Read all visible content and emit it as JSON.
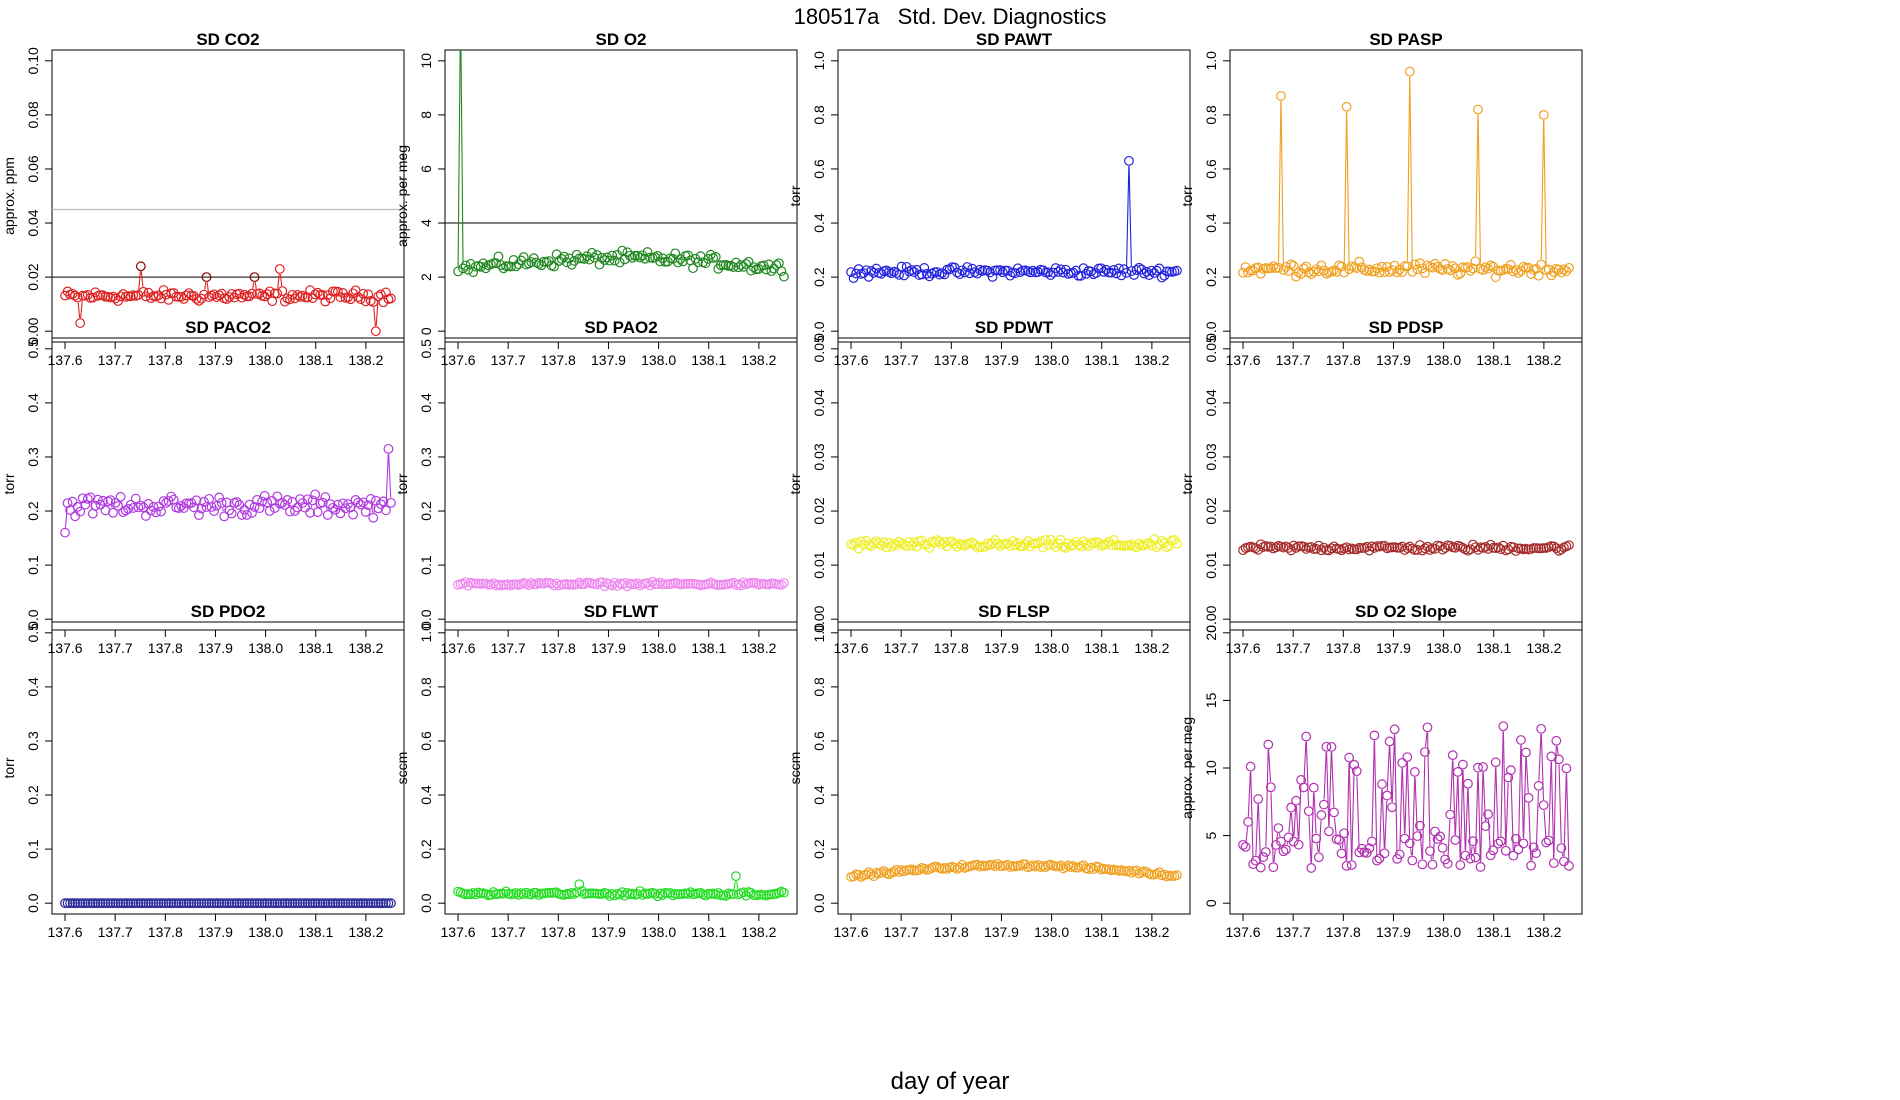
{
  "figure": {
    "title": "180517a   Std. Dev. Diagnostics",
    "xlabel": "day of year"
  },
  "chart_data": [
    {
      "type": "scatter",
      "title": "SD CO2",
      "ylabel": "approx. ppm",
      "xlim": [
        137.6,
        138.25
      ],
      "ylim": [
        0,
        0.1
      ],
      "xticks": [
        "137.6",
        "137.7",
        "137.8",
        "137.9",
        "138.0",
        "138.1",
        "138.2"
      ],
      "yticks": [
        "0.00",
        "0.02",
        "0.04",
        "0.06",
        "0.08",
        "0.10"
      ],
      "color": "#dd2222",
      "n_points": 130,
      "base": 0.013,
      "noise": 0.003,
      "hlines": [
        {
          "y": 0.02,
          "color": "#333333"
        },
        {
          "y": 0.045,
          "color": "#bbbbbb"
        }
      ],
      "spikes": [
        {
          "x": 137.75,
          "y": 0.024,
          "color": "#880000"
        },
        {
          "x": 137.88,
          "y": 0.02,
          "color": "#880000"
        },
        {
          "x": 137.98,
          "y": 0.02,
          "color": "#880000"
        },
        {
          "x": 138.03,
          "y": 0.023
        },
        {
          "x": 138.22,
          "y": 0.0
        },
        {
          "x": 137.63,
          "y": 0.003
        }
      ]
    },
    {
      "type": "scatter",
      "title": "SD O2",
      "ylabel": "approx. per meg",
      "xlim": [
        137.6,
        138.25
      ],
      "ylim": [
        0,
        10
      ],
      "xticks": [
        "137.6",
        "137.7",
        "137.8",
        "137.9",
        "138.0",
        "138.1",
        "138.2"
      ],
      "yticks": [
        "0",
        "2",
        "4",
        "6",
        "8",
        "10"
      ],
      "color": "#228822",
      "n_points": 130,
      "base": 2.3,
      "noise": 0.35,
      "trend": 0.4,
      "hlines": [
        {
          "y": 4,
          "color": "#333333"
        }
      ],
      "spikes": [
        {
          "x": 137.605,
          "y": 12,
          "nomark": true
        }
      ]
    },
    {
      "type": "scatter",
      "title": "SD PAWT",
      "ylabel": "torr",
      "xlim": [
        137.6,
        138.25
      ],
      "ylim": [
        0,
        1
      ],
      "xticks": [
        "137.6",
        "137.7",
        "137.8",
        "137.9",
        "138.0",
        "138.1",
        "138.2"
      ],
      "yticks": [
        "0.0",
        "0.2",
        "0.4",
        "0.6",
        "0.8",
        "1.0"
      ],
      "color": "#2222dd",
      "n_points": 130,
      "base": 0.22,
      "noise": 0.025,
      "hlines": [],
      "spikes": [
        {
          "x": 138.155,
          "y": 0.63
        }
      ]
    },
    {
      "type": "scatter",
      "title": "SD PASP",
      "ylabel": "torr",
      "xlim": [
        137.6,
        138.25
      ],
      "ylim": [
        0,
        1
      ],
      "xticks": [
        "137.6",
        "137.7",
        "137.8",
        "137.9",
        "138.0",
        "138.1",
        "138.2"
      ],
      "yticks": [
        "0.0",
        "0.2",
        "0.4",
        "0.6",
        "0.8",
        "1.0"
      ],
      "color": "#f0a020",
      "n_points": 130,
      "base": 0.23,
      "noise": 0.035,
      "hlines": [],
      "spikes": [
        {
          "x": 137.675,
          "y": 0.87
        },
        {
          "x": 137.805,
          "y": 0.83
        },
        {
          "x": 137.935,
          "y": 0.96
        },
        {
          "x": 138.07,
          "y": 0.82
        },
        {
          "x": 138.2,
          "y": 0.8
        }
      ]
    },
    {
      "type": "scatter",
      "title": "SD PACO2",
      "ylabel": "torr",
      "xlim": [
        137.6,
        138.25
      ],
      "ylim": [
        0,
        0.5
      ],
      "xticks": [
        "137.6",
        "137.7",
        "137.8",
        "137.9",
        "138.0",
        "138.1",
        "138.2"
      ],
      "yticks": [
        "0.0",
        "0.1",
        "0.2",
        "0.3",
        "0.4",
        "0.5"
      ],
      "color": "#b03ae0",
      "n_points": 130,
      "base": 0.21,
      "noise": 0.028,
      "hlines": [],
      "spikes": [
        {
          "x": 138.245,
          "y": 0.315
        },
        {
          "x": 137.6,
          "y": 0.16
        }
      ]
    },
    {
      "type": "scatter",
      "title": "SD PAO2",
      "ylabel": "torr",
      "xlim": [
        137.6,
        138.25
      ],
      "ylim": [
        0,
        0.5
      ],
      "xticks": [
        "137.6",
        "137.7",
        "137.8",
        "137.9",
        "138.0",
        "138.1",
        "138.2"
      ],
      "yticks": [
        "0.0",
        "0.1",
        "0.2",
        "0.3",
        "0.4",
        "0.5"
      ],
      "color": "#ee88ee",
      "n_points": 130,
      "base": 0.065,
      "noise": 0.005,
      "hlines": [],
      "spikes": []
    },
    {
      "type": "scatter",
      "title": "SD PDWT",
      "ylabel": "torr",
      "xlim": [
        137.6,
        138.25
      ],
      "ylim": [
        0,
        0.05
      ],
      "xticks": [
        "137.6",
        "137.7",
        "137.8",
        "137.9",
        "138.0",
        "138.1",
        "138.2"
      ],
      "yticks": [
        "0.00",
        "0.01",
        "0.02",
        "0.03",
        "0.04",
        "0.05"
      ],
      "color": "#eeee22",
      "n_points": 130,
      "base": 0.0138,
      "noise": 0.0012,
      "hlines": [],
      "spikes": []
    },
    {
      "type": "scatter",
      "title": "SD PDSP",
      "ylabel": "torr",
      "xlim": [
        137.6,
        138.25
      ],
      "ylim": [
        0,
        0.05
      ],
      "xticks": [
        "137.6",
        "137.7",
        "137.8",
        "137.9",
        "138.0",
        "138.1",
        "138.2"
      ],
      "yticks": [
        "0.00",
        "0.01",
        "0.02",
        "0.03",
        "0.04",
        "0.05"
      ],
      "color": "#a52a2a",
      "n_points": 130,
      "base": 0.0132,
      "noise": 0.0009,
      "hlines": [],
      "spikes": []
    },
    {
      "type": "scatter",
      "title": "SD PDO2",
      "ylabel": "torr",
      "xlim": [
        137.6,
        138.25
      ],
      "ylim": [
        0,
        0.5
      ],
      "xticks": [
        "137.6",
        "137.7",
        "137.8",
        "137.9",
        "138.0",
        "138.1",
        "138.2"
      ],
      "yticks": [
        "0.0",
        "0.1",
        "0.2",
        "0.3",
        "0.4",
        "0.5"
      ],
      "color": "#2a2a9a",
      "n_points": 130,
      "base": 0.0,
      "noise": 0.0,
      "hlines": [],
      "spikes": []
    },
    {
      "type": "scatter",
      "title": "SD FLWT",
      "ylabel": "sccm",
      "xlim": [
        137.6,
        138.25
      ],
      "ylim": [
        0,
        1
      ],
      "xticks": [
        "137.6",
        "137.7",
        "137.8",
        "137.9",
        "138.0",
        "138.1",
        "138.2"
      ],
      "yticks": [
        "0.0",
        "0.2",
        "0.4",
        "0.6",
        "0.8",
        "1.0"
      ],
      "color": "#22dd22",
      "n_points": 130,
      "base": 0.035,
      "noise": 0.012,
      "hlines": [],
      "spikes": [
        {
          "x": 138.155,
          "y": 0.1
        },
        {
          "x": 137.84,
          "y": 0.07
        }
      ]
    },
    {
      "type": "scatter",
      "title": "SD FLSP",
      "ylabel": "sccm",
      "xlim": [
        137.6,
        138.25
      ],
      "ylim": [
        0,
        1
      ],
      "xticks": [
        "137.6",
        "137.7",
        "137.8",
        "137.9",
        "138.0",
        "138.1",
        "138.2"
      ],
      "yticks": [
        "0.0",
        "0.2",
        "0.4",
        "0.6",
        "0.8",
        "1.0"
      ],
      "color": "#f0a020",
      "n_points": 130,
      "base": 0.1,
      "noise": 0.01,
      "trend": 0.04,
      "hlines": [],
      "spikes": []
    },
    {
      "type": "line",
      "title": "SD O2 Slope",
      "ylabel": "approx. per meg",
      "xlim": [
        137.6,
        138.25
      ],
      "ylim": [
        0,
        20
      ],
      "xticks": [
        "137.6",
        "137.7",
        "137.8",
        "137.9",
        "138.0",
        "138.1",
        "138.2"
      ],
      "yticks": [
        "0",
        "5",
        "10",
        "15",
        "20"
      ],
      "color": "#b030b0",
      "n_points": 130,
      "base": 4,
      "noise": 0,
      "sawtooth": true,
      "hlines": [],
      "spikes": []
    }
  ]
}
